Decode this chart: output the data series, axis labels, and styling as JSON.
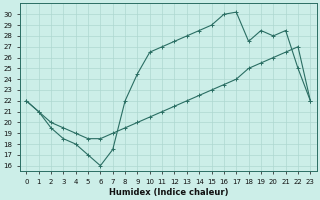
{
  "xlabel": "Humidex (Indice chaleur)",
  "xlim": [
    -0.5,
    23.5
  ],
  "ylim": [
    15.5,
    31.0
  ],
  "xticks": [
    0,
    1,
    2,
    3,
    4,
    5,
    6,
    7,
    8,
    9,
    10,
    11,
    12,
    13,
    14,
    15,
    16,
    17,
    18,
    19,
    20,
    21,
    22,
    23
  ],
  "yticks": [
    16,
    17,
    18,
    19,
    20,
    21,
    22,
    23,
    24,
    25,
    26,
    27,
    28,
    29,
    30
  ],
  "line1_x": [
    0,
    1,
    2,
    3,
    4,
    5,
    6,
    7,
    8,
    9,
    10,
    11,
    12,
    13,
    14,
    15,
    16,
    17,
    18,
    19,
    20,
    21,
    22,
    23
  ],
  "line1_y": [
    22,
    21,
    20,
    19.5,
    19,
    18.5,
    18.5,
    19,
    19.5,
    20,
    20.5,
    21,
    21.5,
    22,
    22.5,
    23,
    23.5,
    24,
    25,
    25.5,
    26,
    26.5,
    27,
    22
  ],
  "line2_x": [
    0,
    1,
    2,
    3,
    4,
    5,
    6,
    7,
    8,
    9,
    10,
    11,
    12,
    13,
    14,
    15,
    16,
    17,
    18,
    19,
    20,
    21,
    22,
    23
  ],
  "line2_y": [
    22,
    21,
    19.5,
    18.5,
    18,
    17,
    16,
    17.5,
    22,
    24.5,
    26.5,
    27,
    27.5,
    28,
    28.5,
    29,
    30,
    30.2,
    27.5,
    28.5,
    28,
    28.5,
    25,
    22
  ],
  "line_color": "#2a6e63",
  "bg_color": "#cceee8",
  "grid_color": "#aed8d0"
}
